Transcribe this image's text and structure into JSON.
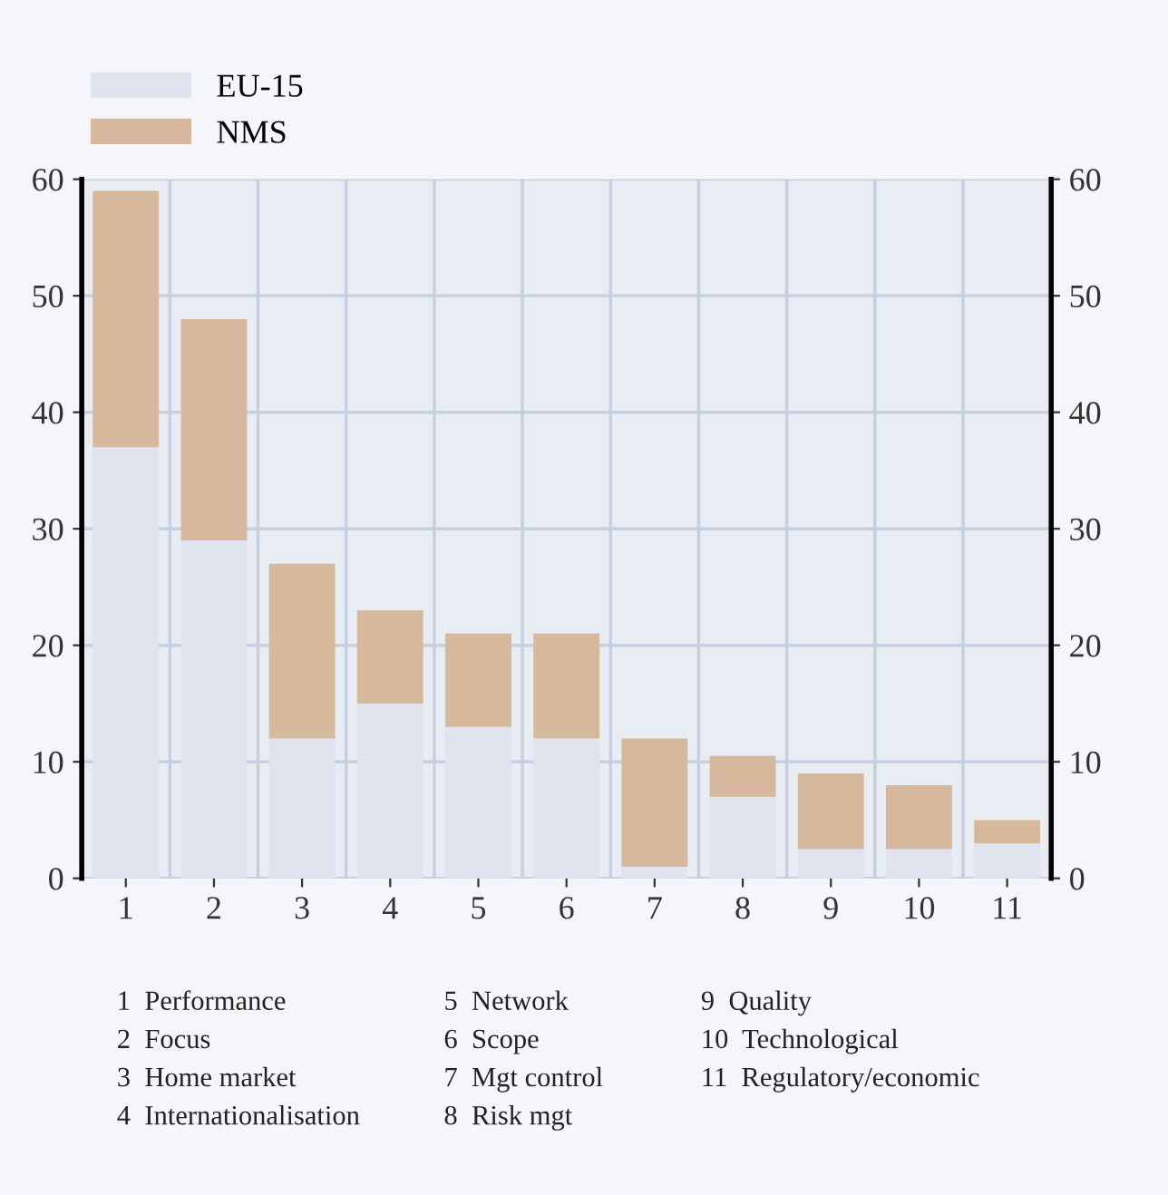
{
  "chart_data": {
    "type": "bar",
    "stacked": true,
    "categories": [
      "1",
      "2",
      "3",
      "4",
      "5",
      "6",
      "7",
      "8",
      "9",
      "10",
      "11"
    ],
    "series": [
      {
        "name": "EU-15",
        "color": "#dfe4ee",
        "values": [
          37,
          29,
          12,
          15,
          13,
          12,
          1,
          7,
          2.5,
          2.5,
          3
        ]
      },
      {
        "name": "NMS",
        "color": "#d6b89c",
        "values": [
          22,
          19,
          15,
          8,
          8,
          9,
          11,
          3.5,
          6.5,
          5.5,
          2
        ]
      }
    ],
    "ylim": [
      0,
      60
    ],
    "yticks": [
      0,
      10,
      20,
      30,
      40,
      50,
      60
    ],
    "y2lim": [
      0,
      60
    ],
    "y2ticks": [
      0,
      10,
      20,
      30,
      40,
      50,
      60
    ],
    "grid": true,
    "legend": "top left",
    "annotations": [
      "1  Performance",
      "2  Focus",
      "3  Home market",
      "4  Internationalisation",
      "5  Network",
      "6  Scope",
      "7  Mgt control",
      "8  Risk mgt",
      "9  Quality",
      "10  Technological",
      "11  Regulatory/economic"
    ]
  }
}
